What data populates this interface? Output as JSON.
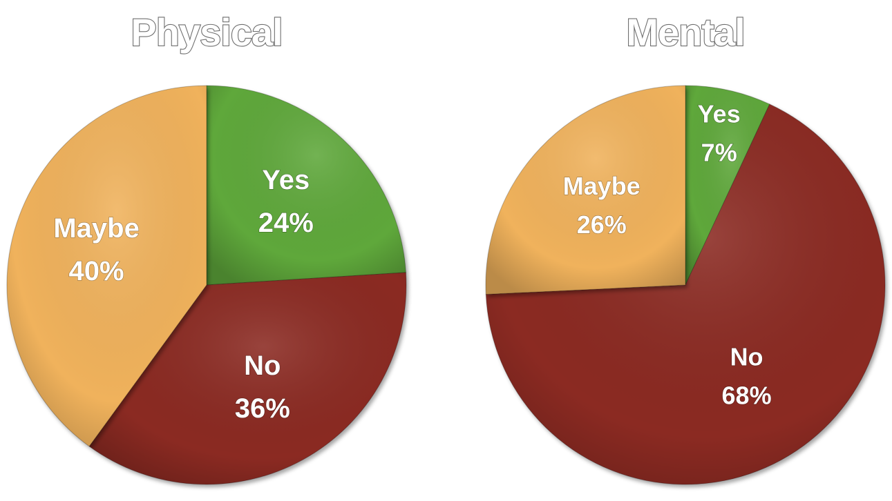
{
  "chart_data": [
    {
      "type": "pie",
      "title": "Physical",
      "slices": [
        {
          "label": "Yes",
          "value": 24,
          "value_text": "24%",
          "color": "#5fa83a"
        },
        {
          "label": "No",
          "value": 36,
          "value_text": "36%",
          "color": "#8b2a24"
        },
        {
          "label": "Maybe",
          "value": 40,
          "value_text": "40%",
          "color": "#f0b25c"
        }
      ]
    },
    {
      "type": "pie",
      "title": "Mental",
      "slices": [
        {
          "label": "Yes",
          "value": 7,
          "value_text": "7%",
          "color": "#5fa83a"
        },
        {
          "label": "No",
          "value": 68,
          "value_text": "68%",
          "color": "#8b2a24"
        },
        {
          "label": "Maybe",
          "value": 26,
          "value_text": "26%",
          "color": "#f0b25c"
        }
      ]
    }
  ]
}
